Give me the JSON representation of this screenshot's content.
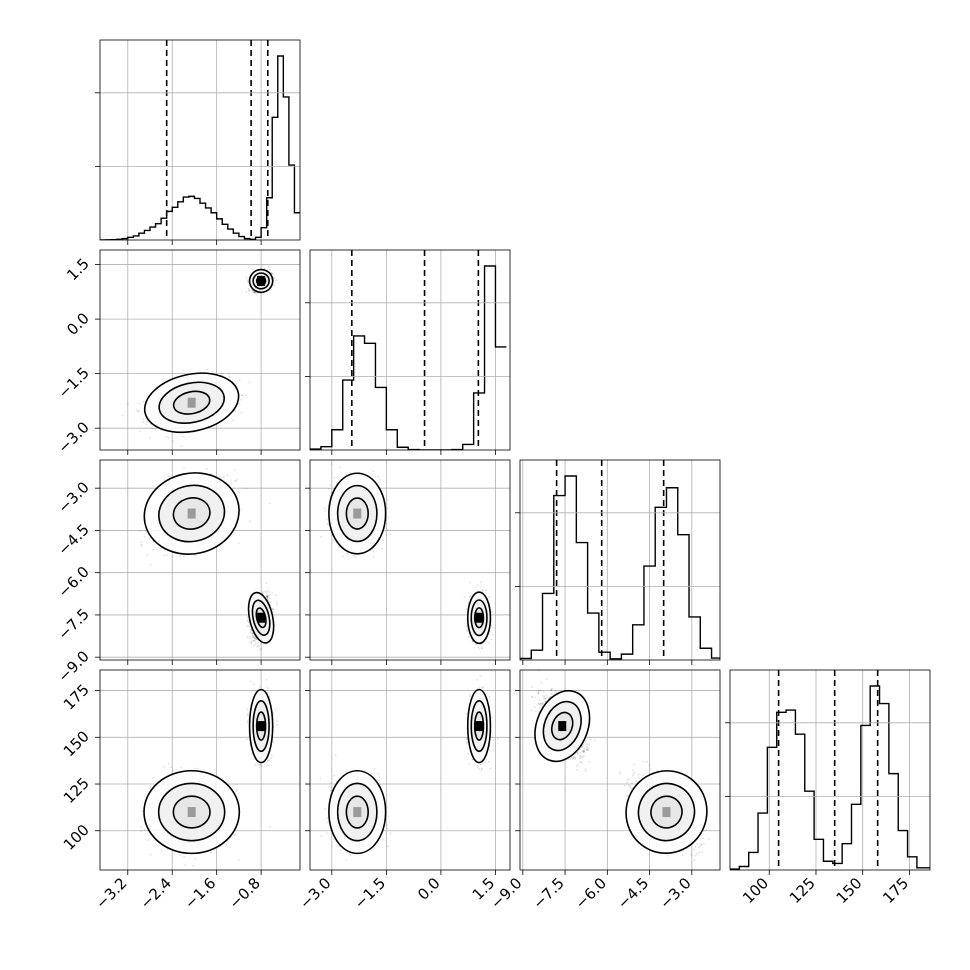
{
  "chart_data": {
    "type": "corner",
    "parameters": 4,
    "ranges": [
      [
        -3.7,
        -0.1
      ],
      [
        -3.6,
        1.9
      ],
      [
        -9.1,
        -2.0
      ],
      [
        79,
        186
      ]
    ],
    "ticks": [
      {
        "values": [
          -3.2,
          -2.4,
          -1.6,
          -0.8
        ],
        "labels": [
          "−3.2",
          "−2.4",
          "−1.6",
          "−0.8"
        ]
      },
      {
        "values": [
          -3.0,
          -1.5,
          0.0,
          1.5
        ],
        "labels": [
          "−3.0",
          "−1.5",
          "0.0",
          "1.5"
        ]
      },
      {
        "values": [
          -9.0,
          -7.5,
          -6.0,
          -4.5,
          -3.0
        ],
        "labels": [
          "−9.0",
          "−7.5",
          "−6.0",
          "−4.5",
          "−3.0"
        ]
      },
      {
        "values": [
          100,
          125,
          150,
          175
        ],
        "labels": [
          "100",
          "125",
          "150",
          "175"
        ]
      }
    ],
    "quantiles": [
      [
        -2.5,
        -0.98,
        -0.68
      ],
      [
        -2.45,
        -0.45,
        1.03
      ],
      [
        -7.8,
        -6.2,
        -4.0
      ],
      [
        105,
        135,
        158
      ]
    ],
    "histograms": [
      {
        "bin_edges": [
          -3.7,
          -3.6,
          -3.5,
          -3.4,
          -3.3,
          -3.2,
          -3.1,
          -3.0,
          -2.9,
          -2.8,
          -2.7,
          -2.6,
          -2.5,
          -2.4,
          -2.3,
          -2.2,
          -2.1,
          -2.0,
          -1.9,
          -1.8,
          -1.7,
          -1.6,
          -1.5,
          -1.4,
          -1.3,
          -1.2,
          -1.1,
          -1.0,
          -0.9,
          -0.8,
          -0.7,
          -0.6,
          -0.5,
          -0.4,
          -0.3,
          -0.2,
          -0.1
        ],
        "counts": [
          0,
          0.2,
          0.5,
          1,
          2,
          4,
          6,
          10,
          14,
          19,
          24,
          32,
          42,
          48,
          56,
          63,
          64,
          61,
          54,
          47,
          40,
          31,
          23,
          16,
          10,
          5,
          2,
          1,
          4,
          18,
          62,
          180,
          270,
          210,
          110,
          40
        ]
      },
      {
        "bin_edges": [
          -3.6,
          -3.3,
          -3.0,
          -2.7,
          -2.4,
          -2.1,
          -1.8,
          -1.5,
          -1.2,
          -0.9,
          -0.6,
          -0.3,
          0.0,
          0.3,
          0.6,
          0.9,
          1.2,
          1.5,
          1.8
        ],
        "counts": [
          5,
          18,
          110,
          380,
          620,
          580,
          340,
          110,
          15,
          2,
          0,
          0,
          0,
          2,
          30,
          310,
          1000,
          560
        ]
      },
      {
        "bin_edges": [
          -9.1,
          -8.7,
          -8.3,
          -7.9,
          -7.5,
          -7.1,
          -6.7,
          -6.3,
          -5.9,
          -5.5,
          -5.1,
          -4.7,
          -4.3,
          -3.9,
          -3.5,
          -3.1,
          -2.7,
          -2.3,
          -2.0
        ],
        "counts": [
          4,
          25,
          170,
          420,
          470,
          300,
          120,
          20,
          3,
          15,
          90,
          240,
          390,
          440,
          320,
          110,
          30,
          5
        ]
      },
      {
        "bin_edges": [
          79,
          84,
          89,
          94,
          99,
          104,
          109,
          114,
          119,
          124,
          129,
          134,
          139,
          144,
          149,
          154,
          159,
          164,
          169,
          174,
          179,
          186
        ],
        "counts": [
          2,
          8,
          40,
          130,
          280,
          360,
          365,
          310,
          180,
          70,
          20,
          15,
          60,
          150,
          330,
          420,
          380,
          220,
          90,
          30,
          5
        ]
      }
    ],
    "modes": [
      {
        "center": [
          -2.05,
          -2.3,
          -3.9,
          110
        ],
        "sd": [
          0.33,
          0.3,
          0.55,
          8.5
        ]
      },
      {
        "center": [
          -0.8,
          1.05,
          -7.6,
          156
        ],
        "sd": [
          0.08,
          0.12,
          0.35,
          7.5
        ]
      }
    ],
    "density": "Two Gaussian clusters per panel; contour levels at roughly 40%, 85% and 99% of the enclosed probability; inner bins shaded grey to black.",
    "grid": true,
    "xlabel": "",
    "ylabel": ""
  }
}
